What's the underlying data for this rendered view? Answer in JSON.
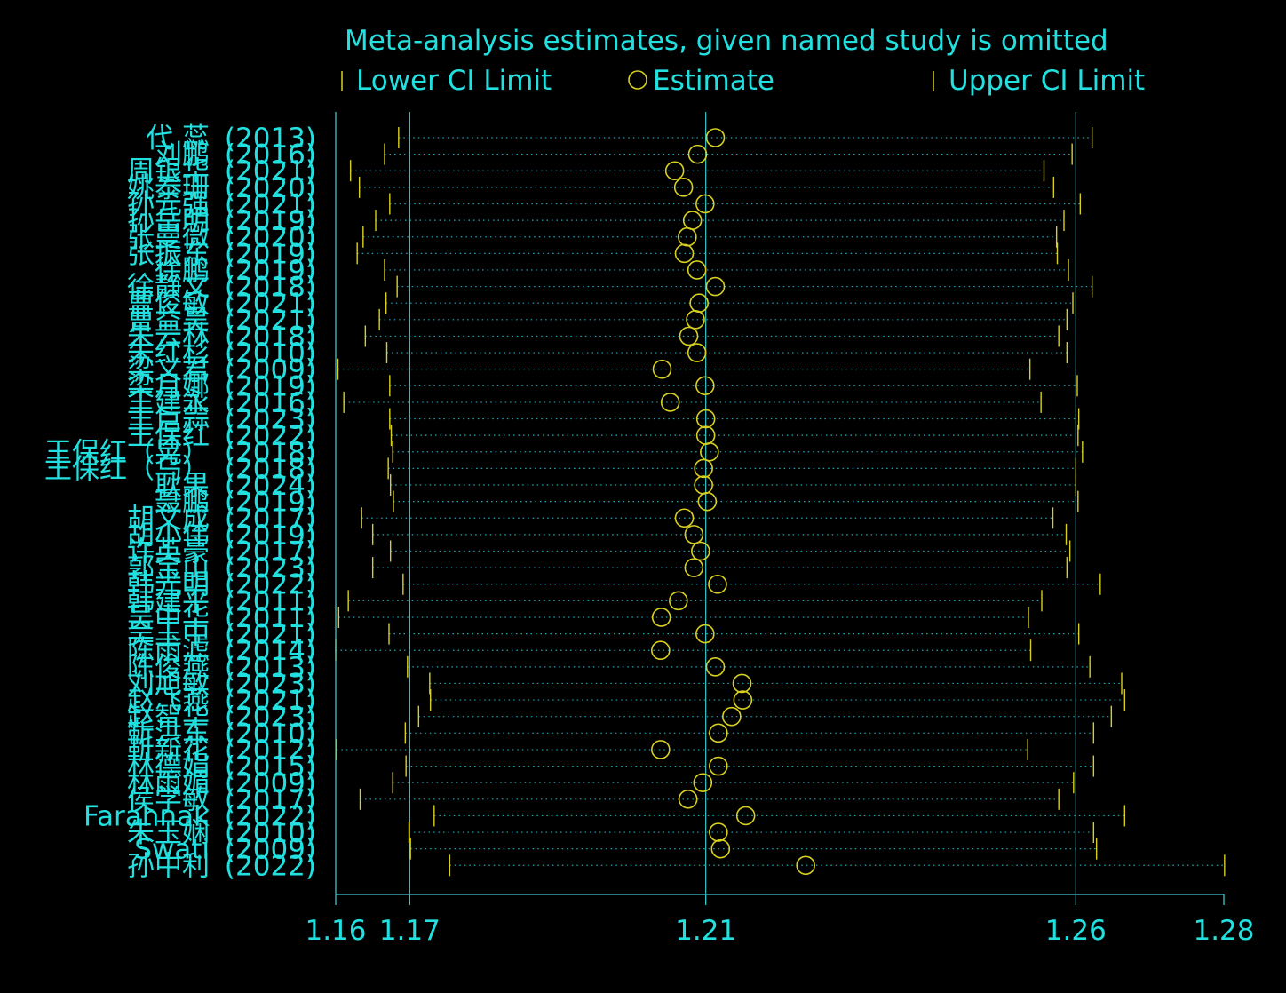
{
  "colors": {
    "background": "#000000",
    "text": "#22E0E0",
    "axis": "#38C8C8",
    "ci_marker": "#D8D020",
    "estimate": "#D8D020",
    "dotted_line": "#1FA8B8"
  },
  "chart_data": {
    "type": "scatter",
    "title": "Meta-analysis estimates, given named study is omitted",
    "legend": {
      "position": "top",
      "items": [
        {
          "label": "Lower CI Limit",
          "marker": "tick"
        },
        {
          "label": "Estimate",
          "marker": "circle"
        },
        {
          "label": "Upper CI Limit",
          "marker": "tick"
        }
      ]
    },
    "xlim": [
      1.16,
      1.28
    ],
    "x_ticks": [
      {
        "value": 1.16,
        "label": "1.16"
      },
      {
        "value": 1.17,
        "label": "1.17"
      },
      {
        "value": 1.21,
        "label": "1.21"
      },
      {
        "value": 1.26,
        "label": "1.26"
      },
      {
        "value": 1.28,
        "label": "1.28"
      }
    ],
    "reference_lines": [
      1.17,
      1.21,
      1.26
    ],
    "grid": false,
    "studies": [
      {
        "name": "代 蕊",
        "year": "(2013)",
        "lower": 1.1685,
        "estimate": 1.2113,
        "upper": 1.2622
      },
      {
        "name": "刘鹏",
        "year": "(2016)",
        "lower": 1.1666,
        "estimate": 1.2089,
        "upper": 1.2595
      },
      {
        "name": "周银华",
        "year": "(2021)",
        "lower": 1.162,
        "estimate": 1.2058,
        "upper": 1.2557
      },
      {
        "name": "姚泰珊",
        "year": "(2020)",
        "lower": 1.1632,
        "estimate": 1.207,
        "upper": 1.257
      },
      {
        "name": "孙元强",
        "year": "(2021)",
        "lower": 1.1673,
        "estimate": 1.2099,
        "upper": 1.2606
      },
      {
        "name": "孙岳明",
        "year": "(2019)",
        "lower": 1.1654,
        "estimate": 1.2082,
        "upper": 1.2584
      },
      {
        "name": "张曼微",
        "year": "(2020)",
        "lower": 1.1637,
        "estimate": 1.2075,
        "upper": 1.2574
      },
      {
        "name": "张振东",
        "year": "(2019)",
        "lower": 1.1629,
        "estimate": 1.2071,
        "upper": 1.2575
      },
      {
        "name": "徐鹏",
        "year": "(2019)",
        "lower": 1.1666,
        "estimate": 1.2088,
        "upper": 1.259
      },
      {
        "name": "徐静文",
        "year": "(2018)",
        "lower": 1.1683,
        "estimate": 1.2113,
        "upper": 1.2622
      },
      {
        "name": "曹俊敏",
        "year": "(2021)",
        "lower": 1.1668,
        "estimate": 1.2091,
        "upper": 1.2596
      },
      {
        "name": "曹益昊",
        "year": "(2021)",
        "lower": 1.1659,
        "estimate": 1.2086,
        "upper": 1.2588
      },
      {
        "name": "朱云林",
        "year": "(2018)",
        "lower": 1.164,
        "estimate": 1.2077,
        "upper": 1.2577
      },
      {
        "name": "朱红杉",
        "year": "(2010)",
        "lower": 1.1669,
        "estimate": 1.2088,
        "upper": 1.2588
      },
      {
        "name": "梁义君",
        "year": "(2009)",
        "lower": 1.1603,
        "estimate": 1.2041,
        "upper": 1.2538
      },
      {
        "name": "梁月娜",
        "year": "(2019)",
        "lower": 1.1673,
        "estimate": 1.2099,
        "upper": 1.2602
      },
      {
        "name": "王建永",
        "year": "(2016)",
        "lower": 1.1611,
        "estimate": 1.2052,
        "upper": 1.2553
      },
      {
        "name": "王巨蒜",
        "year": "(2023)",
        "lower": 1.1673,
        "estimate": 1.21,
        "upper": 1.2604
      },
      {
        "name": "王保红",
        "year": "(2022)",
        "lower": 1.1675,
        "estimate": 1.21,
        "upper": 1.2603
      },
      {
        "name": "王保红（晃）",
        "year": "(2018)",
        "lower": 1.1677,
        "estimate": 1.2105,
        "upper": 1.2609
      },
      {
        "name": "王保红（乌）",
        "year": "(2018)",
        "lower": 1.1671,
        "estimate": 1.2097,
        "upper": 1.26
      },
      {
        "name": "耿果",
        "year": "(2024)",
        "lower": 1.1674,
        "estimate": 1.2097,
        "upper": 1.26
      },
      {
        "name": "聂鹏",
        "year": "(2019)",
        "lower": 1.1678,
        "estimate": 1.2102,
        "upper": 1.2603
      },
      {
        "name": "胡文成",
        "year": "(2017)",
        "lower": 1.1635,
        "estimate": 1.2071,
        "upper": 1.2569
      },
      {
        "name": "胡小伟",
        "year": "(2019)",
        "lower": 1.165,
        "estimate": 1.2084,
        "upper": 1.2587
      },
      {
        "name": "许英豪",
        "year": "(2017)",
        "lower": 1.1674,
        "estimate": 1.2093,
        "upper": 1.2592
      },
      {
        "name": "郭宝山",
        "year": "(2023)",
        "lower": 1.165,
        "estimate": 1.2084,
        "upper": 1.2588
      },
      {
        "name": "韩光明",
        "year": "(2022)",
        "lower": 1.1691,
        "estimate": 1.2116,
        "upper": 1.2633
      },
      {
        "name": "韩建平",
        "year": "(2011)",
        "lower": 1.1617,
        "estimate": 1.2063,
        "upper": 1.2554
      },
      {
        "name": "吴中华",
        "year": "(2011)",
        "lower": 1.1604,
        "estimate": 1.204,
        "upper": 1.2536
      },
      {
        "name": "吴玉中",
        "year": "(2021)",
        "lower": 1.1672,
        "estimate": 1.2099,
        "upper": 1.2604
      },
      {
        "name": "陈雨滤",
        "year": "(2014)",
        "lower": 1.16,
        "estimate": 1.2039,
        "upper": 1.2539
      },
      {
        "name": "陈俊燕",
        "year": "(2013)",
        "lower": 1.1697,
        "estimate": 1.2113,
        "upper": 1.2619
      },
      {
        "name": "刘旭敏",
        "year": "(2023)",
        "lower": 1.1727,
        "estimate": 1.2149,
        "upper": 1.2662
      },
      {
        "name": "赵飞燕",
        "year": "(2021)",
        "lower": 1.1728,
        "estimate": 1.215,
        "upper": 1.2666
      },
      {
        "name": "赵智华",
        "year": "(2023)",
        "lower": 1.1712,
        "estimate": 1.2135,
        "upper": 1.2648
      },
      {
        "name": "靳洪东",
        "year": "(2010)",
        "lower": 1.1694,
        "estimate": 1.2117,
        "upper": 1.2624
      },
      {
        "name": "靳新花",
        "year": "(2012)",
        "lower": 1.1601,
        "estimate": 1.2039,
        "upper": 1.2535
      },
      {
        "name": "林德娟",
        "year": "(2015)",
        "lower": 1.1695,
        "estimate": 1.2117,
        "upper": 1.2624
      },
      {
        "name": "林雨媚",
        "year": "(2009)",
        "lower": 1.1677,
        "estimate": 1.2096,
        "upper": 1.2597
      },
      {
        "name": "侯学敏",
        "year": "(2017)",
        "lower": 1.1633,
        "estimate": 1.2076,
        "upper": 1.2577
      },
      {
        "name": "Farahnak",
        "year": "(2022)",
        "lower": 1.1733,
        "estimate": 1.2154,
        "upper": 1.2666
      },
      {
        "name": "朱玉娴",
        "year": "(2010)",
        "lower": 1.1699,
        "estimate": 1.2117,
        "upper": 1.2624
      },
      {
        "name": "Swati",
        "year": "(2009)",
        "lower": 1.1701,
        "estimate": 1.212,
        "upper": 1.2628
      },
      {
        "name": "孙中利",
        "year": "(2022)",
        "lower": 1.1754,
        "estimate": 1.2235,
        "upper": 1.2801
      }
    ]
  }
}
